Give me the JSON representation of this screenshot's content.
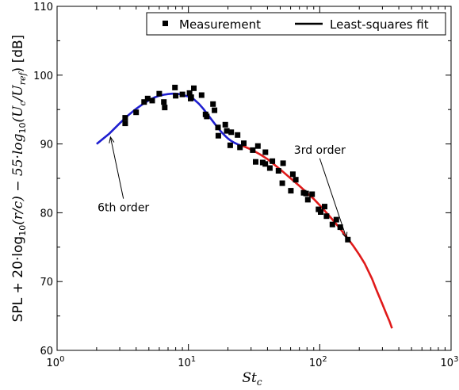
{
  "chart_data": {
    "type": "scatter",
    "xscale": "log",
    "xlim": [
      1,
      1000
    ],
    "ylim": [
      60,
      110
    ],
    "xticks": [
      {
        "value": 1,
        "base": "10",
        "exp": "0"
      },
      {
        "value": 10,
        "base": "10",
        "exp": "1"
      },
      {
        "value": 100,
        "base": "10",
        "exp": "2"
      },
      {
        "value": 1000,
        "base": "10",
        "exp": "3"
      }
    ],
    "yticks": [
      60,
      70,
      80,
      90,
      100,
      110
    ],
    "xlabel": {
      "main": "St",
      "sub": "c"
    },
    "ylabel": {
      "prefix": "SPL + 20·log",
      "sub1": "10",
      "mid": "(r/c) − 55·log",
      "sub2": "10",
      "mid2": "(U",
      "sub3": "c",
      "mid3": "/U",
      "sub4": "ref",
      "suffix": ")  [dB]"
    },
    "legend": {
      "placement": "top-right",
      "entries": [
        {
          "label": "Measurement",
          "kind": "marker"
        },
        {
          "label": "Least-squares fit",
          "kind": "line"
        }
      ]
    },
    "annotations": [
      {
        "text": "6th order",
        "text_at": [
          3.2,
          80.2
        ],
        "arrow_to": [
          2.55,
          91.0
        ]
      },
      {
        "text": "3rd order",
        "text_at": [
          100,
          88.6
        ],
        "arrow_to": [
          160,
          76.3
        ]
      }
    ],
    "series": [
      {
        "name": "Measurement",
        "kind": "markers",
        "color": "#000000",
        "x": [
          3.3,
          3.3,
          4.0,
          4.6,
          4.9,
          5.3,
          6.0,
          6.5,
          6.6,
          7.9,
          8.0,
          9.0,
          10.2,
          10.4,
          10.5,
          11.0,
          12.6,
          13.5,
          13.8,
          15.4,
          15.8,
          16.8,
          16.9,
          19.1,
          19.6,
          20.8,
          21.2,
          23.7,
          24.7,
          26.4,
          30.9,
          32.5,
          33.8,
          36.8,
          38.5,
          38.6,
          41.7,
          43.6,
          48.5,
          51.9,
          52.6,
          60.3,
          62.4,
          65.7,
          75.4,
          78.7,
          81.1,
          87.5,
          97.9,
          101.7,
          109.0,
          112.6,
          124.9,
          133.8,
          143.3,
          163.8
        ],
        "y": [
          93.8,
          93.0,
          94.6,
          96.1,
          96.6,
          96.3,
          97.3,
          96.1,
          95.3,
          98.2,
          97.0,
          97.2,
          97.4,
          96.6,
          96.8,
          98.1,
          97.1,
          94.3,
          94.0,
          95.8,
          94.9,
          92.4,
          91.2,
          92.8,
          91.9,
          89.8,
          91.7,
          91.3,
          89.5,
          90.1,
          89.1,
          87.4,
          89.7,
          87.3,
          87.1,
          88.8,
          86.5,
          87.5,
          86.1,
          84.3,
          87.2,
          83.2,
          85.6,
          84.8,
          82.9,
          82.8,
          81.9,
          82.7,
          80.5,
          80.1,
          80.9,
          79.5,
          78.3,
          79.0,
          77.9,
          76.1
        ]
      },
      {
        "name": "6th order",
        "kind": "line",
        "color": "#1f1fd0",
        "x": [
          2.0,
          2.5,
          3.0,
          3.5,
          4.0,
          4.5,
          5.0,
          5.5,
          6.0,
          6.5,
          7.0,
          7.5,
          8.0,
          8.5,
          9.0,
          9.5,
          10.0,
          11.0,
          12.0,
          13.0,
          14.0,
          15.0,
          16.0,
          17.0,
          18.0,
          19.0,
          20.0,
          21.0,
          22.0,
          24.0,
          26.0
        ],
        "y": [
          90.0,
          91.5,
          93.0,
          94.2,
          95.1,
          95.8,
          96.35,
          96.75,
          97.0,
          97.15,
          97.25,
          97.3,
          97.3,
          97.25,
          97.15,
          97.0,
          96.9,
          96.5,
          95.85,
          95.1,
          94.3,
          93.55,
          92.85,
          92.2,
          91.65,
          91.2,
          90.8,
          90.5,
          90.25,
          89.9,
          89.7
        ]
      },
      {
        "name": "3rd order",
        "kind": "line",
        "color": "#e01a1a",
        "x": [
          26.0,
          30.0,
          35.0,
          40.0,
          50.0,
          60.0,
          70.0,
          80.0,
          90.0,
          100.0,
          120.0,
          140.0,
          160.0,
          180.0,
          200.0,
          220.0,
          250.0,
          270.0,
          300.0,
          320.0,
          340.0,
          355.0
        ],
        "y": [
          89.7,
          89.2,
          88.5,
          87.8,
          86.3,
          85.0,
          83.9,
          82.9,
          82.0,
          81.1,
          79.4,
          77.9,
          76.5,
          75.2,
          73.9,
          72.6,
          70.4,
          68.8,
          66.7,
          65.4,
          64.2,
          63.2
        ]
      }
    ]
  }
}
